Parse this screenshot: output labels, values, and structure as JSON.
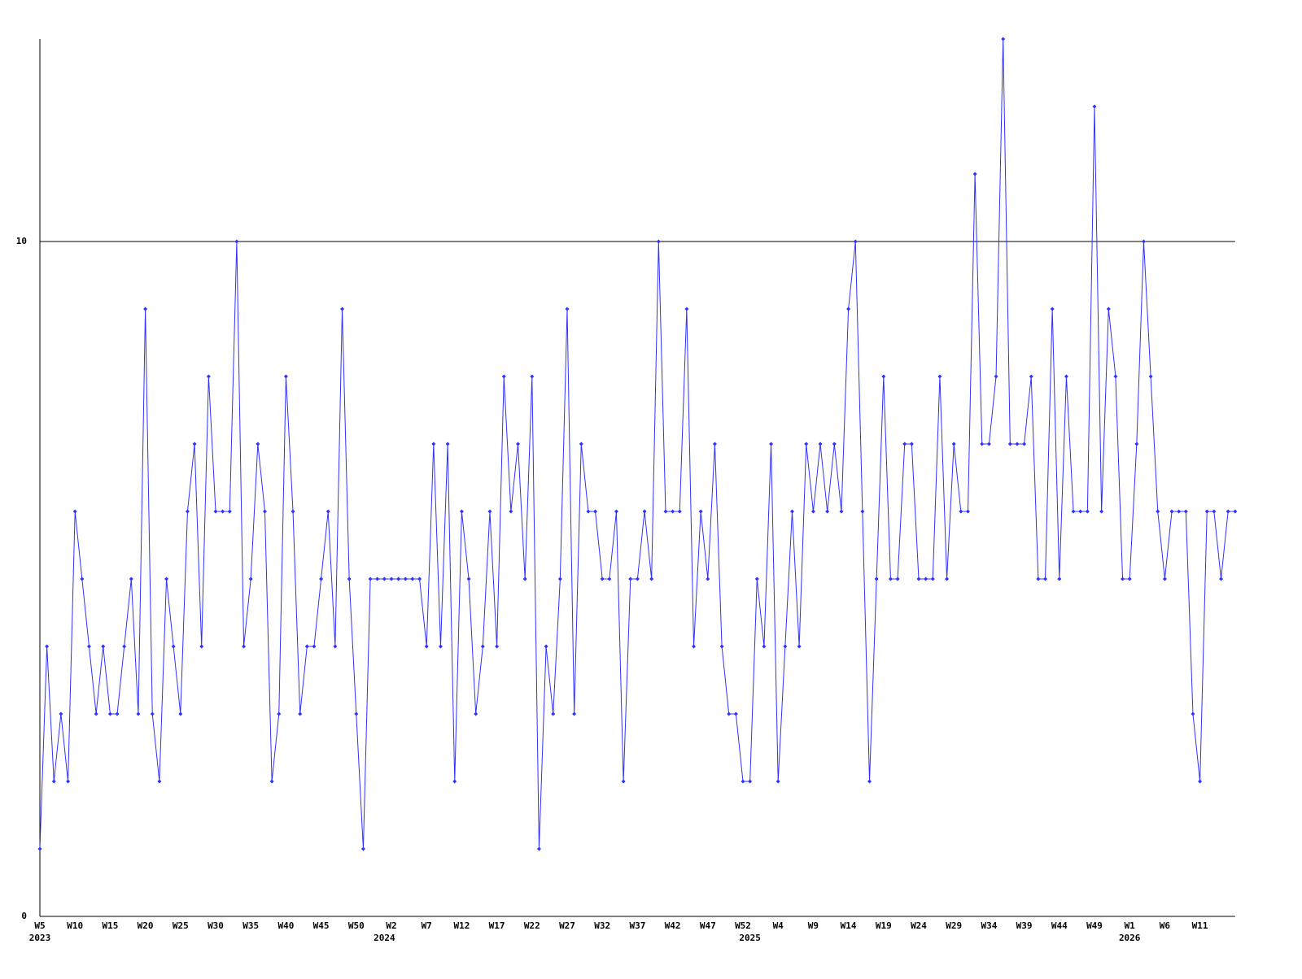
{
  "chart_data": {
    "type": "line",
    "categories": [
      "W5",
      null,
      null,
      null,
      null,
      "W10",
      null,
      null,
      null,
      null,
      "W15",
      null,
      null,
      null,
      null,
      "W20",
      null,
      null,
      null,
      null,
      "W25",
      null,
      null,
      null,
      null,
      "W30",
      null,
      null,
      null,
      null,
      "W35",
      null,
      null,
      null,
      null,
      "W40",
      null,
      null,
      null,
      null,
      "W45",
      null,
      null,
      null,
      null,
      "W50",
      null,
      null,
      null,
      null,
      "W2",
      null,
      null,
      null,
      null,
      "W7",
      null,
      null,
      null,
      null,
      "W12",
      null,
      null,
      null,
      null,
      "W17",
      null,
      null,
      null,
      null,
      "W22",
      null,
      null,
      null,
      null,
      "W27",
      null,
      null,
      null,
      null,
      "W32",
      null,
      null,
      null,
      null,
      "W37",
      null,
      null,
      null,
      null,
      "W42",
      null,
      null,
      null,
      null,
      "W47",
      null,
      null,
      null,
      null,
      "W52",
      null,
      null,
      null,
      null,
      "W4",
      null,
      null,
      null,
      null,
      "W9",
      null,
      null,
      null,
      null,
      "W14",
      null,
      null,
      null,
      null,
      "W19",
      null,
      null,
      null,
      null,
      "W24",
      null,
      null,
      null,
      null,
      "W29",
      null,
      null,
      null,
      null,
      "W34",
      null,
      null,
      null,
      null,
      "W39",
      null,
      null,
      null,
      null,
      "W44",
      null,
      null,
      null,
      null,
      "W49",
      null,
      null,
      null,
      null,
      "W1",
      null,
      null,
      null,
      null,
      "W6",
      null,
      null,
      null,
      null,
      "W11",
      null,
      null,
      null,
      null,
      null
    ],
    "years": [
      "2023",
      null,
      null,
      null,
      null,
      null,
      null,
      null,
      null,
      null,
      null,
      null,
      null,
      null,
      null,
      null,
      null,
      null,
      null,
      null,
      null,
      null,
      null,
      null,
      null,
      null,
      null,
      null,
      null,
      null,
      null,
      null,
      null,
      null,
      null,
      null,
      null,
      null,
      null,
      null,
      null,
      null,
      null,
      null,
      null,
      null,
      null,
      null,
      null,
      "2024",
      null,
      null,
      null,
      null,
      null,
      null,
      null,
      null,
      null,
      null,
      null,
      null,
      null,
      null,
      null,
      null,
      null,
      null,
      null,
      null,
      null,
      null,
      null,
      null,
      null,
      null,
      null,
      null,
      null,
      null,
      null,
      null,
      null,
      null,
      null,
      null,
      null,
      null,
      null,
      null,
      null,
      null,
      null,
      null,
      null,
      null,
      null,
      null,
      null,
      null,
      null,
      "2025",
      null,
      null,
      null,
      null,
      null,
      null,
      null,
      null,
      null,
      null,
      null,
      null,
      null,
      null,
      null,
      null,
      null,
      null,
      null,
      null,
      null,
      null,
      null,
      null,
      null,
      null,
      null,
      null,
      null,
      null,
      null,
      null,
      null,
      null,
      null,
      null,
      null,
      null,
      null,
      null,
      null,
      null,
      null,
      null,
      null,
      null,
      null,
      null,
      null,
      null,
      null,
      null,
      null,
      "2026",
      null,
      null,
      null,
      null,
      null,
      null,
      null,
      null,
      null,
      null,
      null,
      null,
      null,
      null,
      null
    ],
    "values": [
      1,
      4,
      2,
      3,
      2,
      6,
      5,
      4,
      3,
      4,
      3,
      3,
      4,
      5,
      3,
      9,
      3,
      2,
      5,
      4,
      3,
      6,
      7,
      4,
      8,
      6,
      6,
      6,
      10,
      4,
      5,
      7,
      6,
      2,
      3,
      8,
      6,
      3,
      4,
      4,
      5,
      6,
      4,
      9,
      5,
      3,
      1,
      5,
      5,
      5,
      5,
      5,
      5,
      5,
      5,
      4,
      7,
      4,
      7,
      2,
      6,
      5,
      3,
      4,
      6,
      4,
      8,
      6,
      7,
      5,
      8,
      1,
      4,
      3,
      5,
      9,
      3,
      7,
      6,
      6,
      5,
      5,
      6,
      2,
      5,
      5,
      6,
      5,
      10,
      6,
      6,
      6,
      9,
      4,
      6,
      5,
      7,
      4,
      3,
      3,
      2,
      2,
      5,
      4,
      7,
      2,
      4,
      6,
      4,
      7,
      6,
      7,
      6,
      7,
      6,
      9,
      10,
      6,
      2,
      5,
      8,
      5,
      5,
      7,
      7,
      5,
      5,
      5,
      8,
      5,
      7,
      6,
      6,
      11,
      7,
      7,
      8,
      13,
      7,
      7,
      7,
      8,
      5,
      5,
      9,
      5,
      8,
      6,
      6,
      6,
      12,
      6,
      9,
      8,
      5,
      5,
      7,
      10,
      8,
      6,
      5,
      6,
      6,
      6,
      3,
      2,
      6,
      6,
      5,
      6,
      6
    ],
    "color": "#3030ff",
    "ylim": [
      0,
      13
    ],
    "yticks": [
      0,
      10
    ],
    "grid": true
  }
}
